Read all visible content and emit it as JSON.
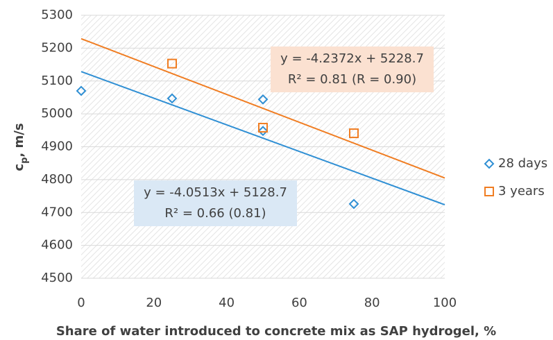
{
  "chart_data": {
    "type": "scatter",
    "xlabel": "Share of water introduced to concrete mix as SAP hydrogel, %",
    "ylabel": {
      "main": "c",
      "sub": "p",
      "rest": ", m/s"
    },
    "xlim": [
      0,
      100
    ],
    "xticks": [
      0,
      20,
      40,
      60,
      80,
      100
    ],
    "ylim": [
      4500,
      5300
    ],
    "yticks": [
      4500,
      4600,
      4700,
      4800,
      4900,
      5000,
      5100,
      5200,
      5300
    ],
    "grid": true,
    "legend": "right",
    "series": [
      {
        "name": "28 days",
        "color": "#2f8fd4",
        "marker": "diamond",
        "x": [
          0,
          25,
          50,
          50,
          75
        ],
        "values": [
          5070,
          5047,
          5044,
          4948,
          4726
        ],
        "trendline": {
          "slope": -4.0513,
          "intercept": 5128.7,
          "labels": [
            "y = -4.0513x + 5128.7",
            "R² = 0.66 (0.81)"
          ],
          "box": "#dae8f5"
        }
      },
      {
        "name": "3 years",
        "color": "#f07d22",
        "marker": "square",
        "x": [
          25,
          50,
          75
        ],
        "values": [
          5153,
          4958,
          4941
        ],
        "trendline": {
          "slope": -4.2372,
          "intercept": 5228.7,
          "labels": [
            "y = -4.2372x + 5228.7",
            "R² = 0.81 (R = 0.90)"
          ],
          "box": "#fbe1d1"
        }
      }
    ]
  }
}
